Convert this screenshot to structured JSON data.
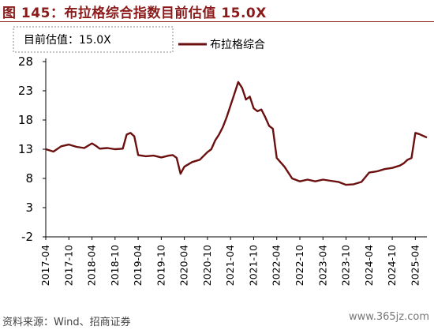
{
  "figure_title": "图 145：布拉格综合指数目前估值 15.0X",
  "source": "资料来源：Wind、招商证券",
  "watermark": "www.365jz.com",
  "colors": {
    "series": "#6B0F0F",
    "accent": "#8B1A1A",
    "axis": "#000000"
  },
  "chart_data": {
    "type": "line",
    "title": "",
    "xlabel": "",
    "ylabel": "",
    "ylim": [
      -2,
      28
    ],
    "yticks": [
      28,
      23,
      18,
      13,
      8,
      3,
      -2
    ],
    "xtick_labels": [
      "2017-04",
      "2017-10",
      "2018-04",
      "2018-10",
      "2019-04",
      "2019-10",
      "2020-04",
      "2020-10",
      "2021-04",
      "2021-10",
      "2022-04",
      "2022-10",
      "2023-04",
      "2023-10",
      "2024-04",
      "2024-10",
      "2025-04"
    ],
    "xlim": [
      "2017-04",
      "2025-07"
    ],
    "grid": false,
    "legend": {
      "position": "top-right",
      "entries": [
        "布拉格综合"
      ]
    },
    "annotation": "目前估值：15.0X",
    "series": [
      {
        "name": "布拉格综合",
        "x": [
          "2017-04",
          "2017-06",
          "2017-08",
          "2017-10",
          "2017-12",
          "2018-02",
          "2018-04",
          "2018-05",
          "2018-06",
          "2018-08",
          "2018-10",
          "2018-12",
          "2019-01",
          "2019-02",
          "2019-03",
          "2019-04",
          "2019-06",
          "2019-08",
          "2019-10",
          "2019-12",
          "2020-01",
          "2020-02",
          "2020-03",
          "2020-04",
          "2020-06",
          "2020-08",
          "2020-10",
          "2020-11",
          "2020-12",
          "2021-01",
          "2021-02",
          "2021-03",
          "2021-04",
          "2021-05",
          "2021-06",
          "2021-07",
          "2021-08",
          "2021-09",
          "2021-10",
          "2021-11",
          "2021-12",
          "2022-01",
          "2022-02",
          "2022-03",
          "2022-04",
          "2022-06",
          "2022-08",
          "2022-10",
          "2022-12",
          "2023-02",
          "2023-04",
          "2023-06",
          "2023-08",
          "2023-10",
          "2023-12",
          "2024-02",
          "2024-04",
          "2024-06",
          "2024-08",
          "2024-10",
          "2024-12",
          "2025-01",
          "2025-02",
          "2025-03",
          "2025-04",
          "2025-05",
          "2025-06",
          "2025-07"
        ],
        "y": [
          13.0,
          12.6,
          13.5,
          13.8,
          13.4,
          13.2,
          14.0,
          13.6,
          13.1,
          13.2,
          13.0,
          13.1,
          15.5,
          15.8,
          15.2,
          12.0,
          11.8,
          11.9,
          11.6,
          11.9,
          12.0,
          11.5,
          8.8,
          10.0,
          10.8,
          11.2,
          12.5,
          13.0,
          14.5,
          15.5,
          16.8,
          18.5,
          20.5,
          22.5,
          24.5,
          23.5,
          21.5,
          22.0,
          20.0,
          19.5,
          19.8,
          18.5,
          17.0,
          16.5,
          11.5,
          10.0,
          8.0,
          7.5,
          7.8,
          7.5,
          7.8,
          7.6,
          7.4,
          6.9,
          7.0,
          7.4,
          9.0,
          9.2,
          9.6,
          9.8,
          10.2,
          10.6,
          11.2,
          11.5,
          15.8,
          15.6,
          15.3,
          15.0
        ]
      }
    ]
  }
}
